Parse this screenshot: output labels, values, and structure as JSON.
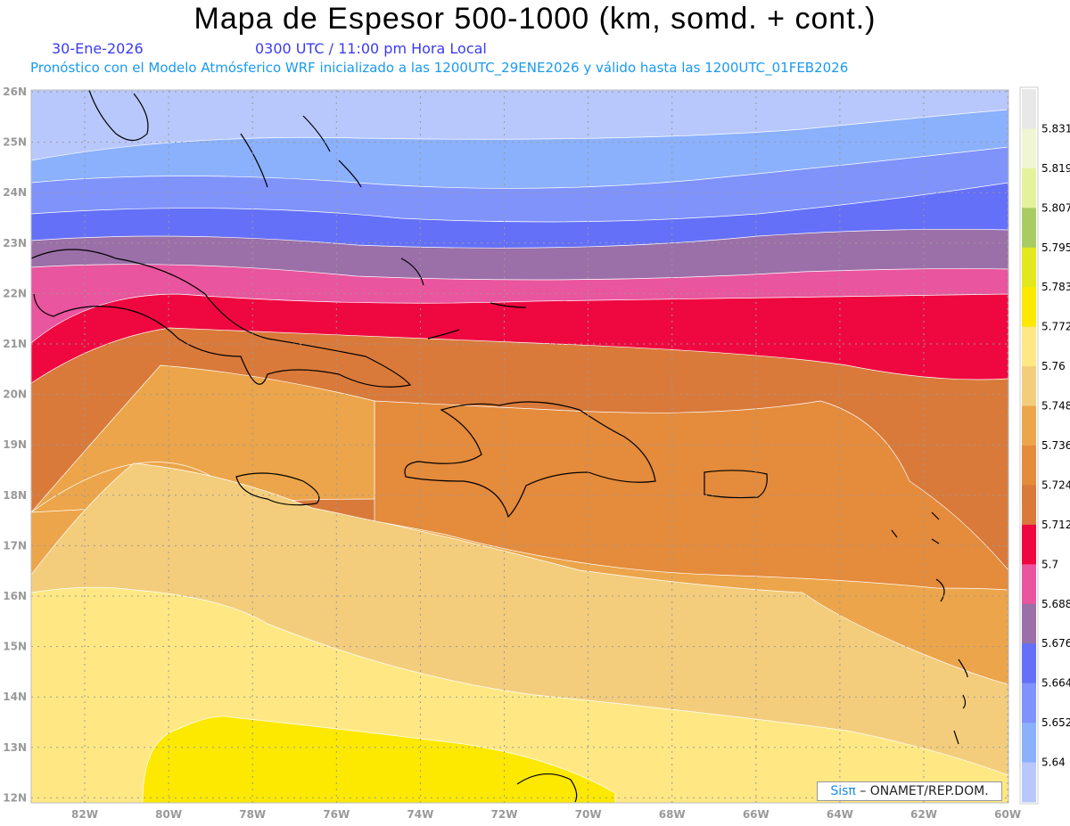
{
  "header": {
    "title": "Mapa de Espesor 500-1000 (km, somd. + cont.)",
    "date": "30-Ene-2026",
    "time": "0300 UTC / 11:00 pm Hora Local",
    "forecast_info": "Pronóstico con el Modelo Atmósferico WRF inicializado a las 1200UTC_29ENE2026 y válido hasta las  1200UTC_01FEB2026"
  },
  "map": {
    "lon_labels": [
      "82W",
      "80W",
      "78W",
      "76W",
      "74W",
      "72W",
      "70W",
      "68W",
      "66W",
      "64W",
      "62W",
      "60W"
    ],
    "lat_labels": [
      "26N",
      "25N",
      "24N",
      "23N",
      "22N",
      "21N",
      "20N",
      "19N",
      "18N",
      "17N",
      "16N",
      "15N",
      "14N",
      "13N",
      "12N"
    ]
  },
  "colorbar": {
    "colors": [
      "#e8e8e8",
      "#f0f5d2",
      "#e5f29c",
      "#a9cc62",
      "#e2e81c",
      "#fde800",
      "#ffe884",
      "#f3cd7c",
      "#eca54a",
      "#e48b3c",
      "#d97a3a",
      "#ef0840",
      "#e9559e",
      "#9b6fa8",
      "#6470f8",
      "#7f93fb",
      "#8bb0fc",
      "#b8c8fc"
    ],
    "labels": [
      "5.831",
      "5.819",
      "5.807",
      "5.795",
      "5.783",
      "5.772",
      "5.76",
      "5.748",
      "5.736",
      "5.724",
      "5.712",
      "5.7",
      "5.688",
      "5.676",
      "5.664",
      "5.652",
      "5.64"
    ]
  },
  "credit": {
    "brand": "Sisπ",
    "text": "– ONAMET/REP.DOM."
  }
}
